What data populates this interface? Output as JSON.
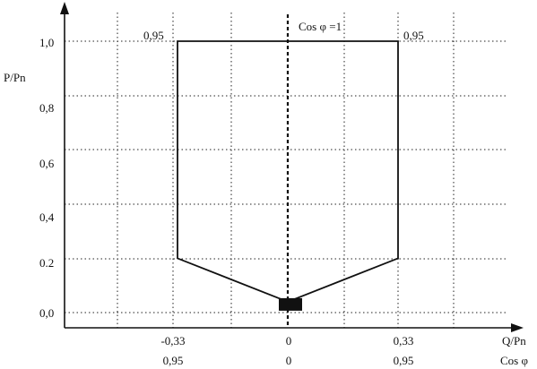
{
  "diagram": {
    "y_axis_title": "P/Pn",
    "x_axis_title": "Q/Pn",
    "cos_axis_title": "Cos φ",
    "center_line_label": "Cos φ =1",
    "y_ticks": [
      "1,0",
      "0,8",
      "0,6",
      "0,4",
      "0.2",
      "0,0"
    ],
    "x_ticks": [
      "-0,33",
      "0",
      "0,33"
    ],
    "cos_ticks": [
      "0,95",
      "0",
      "0,95"
    ],
    "top_left_pf": "0,95",
    "top_right_pf": "0,95",
    "region_outline": [
      {
        "q": -0.33,
        "p": 1.0
      },
      {
        "q": 0.33,
        "p": 1.0
      },
      {
        "q": 0.33,
        "p": 0.2
      },
      {
        "q": 0.0,
        "p": 0.04
      },
      {
        "q": -0.33,
        "p": 0.2
      }
    ],
    "origin_marker": {
      "q": 0.0,
      "p": 0.03
    }
  }
}
